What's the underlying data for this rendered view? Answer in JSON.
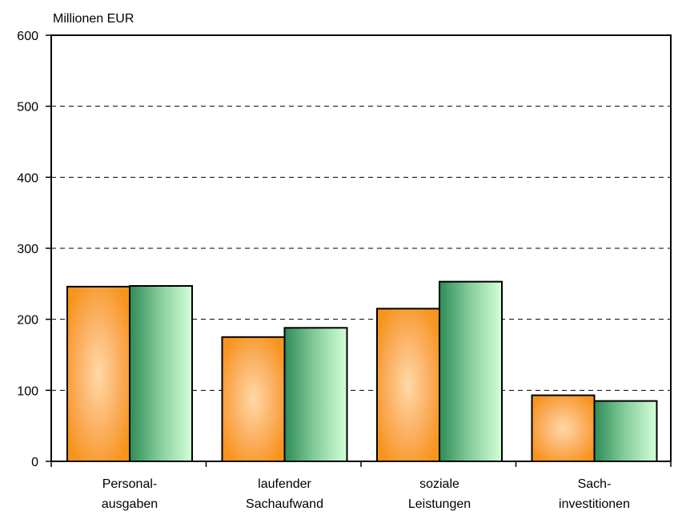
{
  "chart_data": {
    "type": "bar",
    "ylabel": "Millionen EUR",
    "ylim": [
      0,
      600
    ],
    "yticks": [
      0,
      100,
      200,
      300,
      400,
      500,
      600
    ],
    "grid": true,
    "categories": [
      [
        "Personal-",
        "ausgaben"
      ],
      [
        "laufender",
        "Sachaufwand"
      ],
      [
        "soziale",
        "Leistungen"
      ],
      [
        "Sach-",
        "investitionen"
      ]
    ],
    "series": [
      {
        "color": "#f7941d",
        "values": [
          246,
          175,
          215,
          93
        ]
      },
      {
        "color": "#2e8b57",
        "values": [
          247,
          188,
          253,
          85
        ]
      }
    ]
  }
}
